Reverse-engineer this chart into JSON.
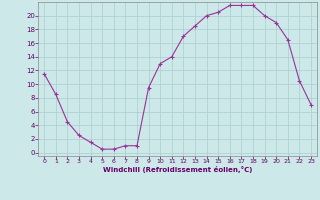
{
  "x": [
    0,
    1,
    2,
    3,
    4,
    5,
    6,
    7,
    8,
    9,
    10,
    11,
    12,
    13,
    14,
    15,
    16,
    17,
    18,
    19,
    20,
    21,
    22,
    23
  ],
  "y": [
    11.5,
    8.5,
    4.5,
    2.5,
    1.5,
    0.5,
    0.5,
    1.0,
    1.0,
    9.5,
    13.0,
    14.0,
    17.0,
    18.5,
    20.0,
    20.5,
    21.5,
    21.5,
    21.5,
    20.0,
    19.0,
    16.5,
    10.5,
    7.0
  ],
  "line_color": "#993399",
  "marker": "+",
  "bg_color": "#cce8e8",
  "grid_color": "#aacece",
  "text_color": "#660066",
  "axis_color": "#888888",
  "xlabel": "Windchill (Refroidissement éolien,°C)",
  "ylabel_ticks": [
    0,
    2,
    4,
    6,
    8,
    10,
    12,
    14,
    16,
    18,
    20
  ],
  "ylim": [
    -0.5,
    22
  ],
  "xlim": [
    -0.5,
    23.5
  ],
  "xticks": [
    0,
    1,
    2,
    3,
    4,
    5,
    6,
    7,
    8,
    9,
    10,
    11,
    12,
    13,
    14,
    15,
    16,
    17,
    18,
    19,
    20,
    21,
    22,
    23
  ],
  "figsize": [
    3.2,
    2.0
  ],
  "dpi": 100
}
